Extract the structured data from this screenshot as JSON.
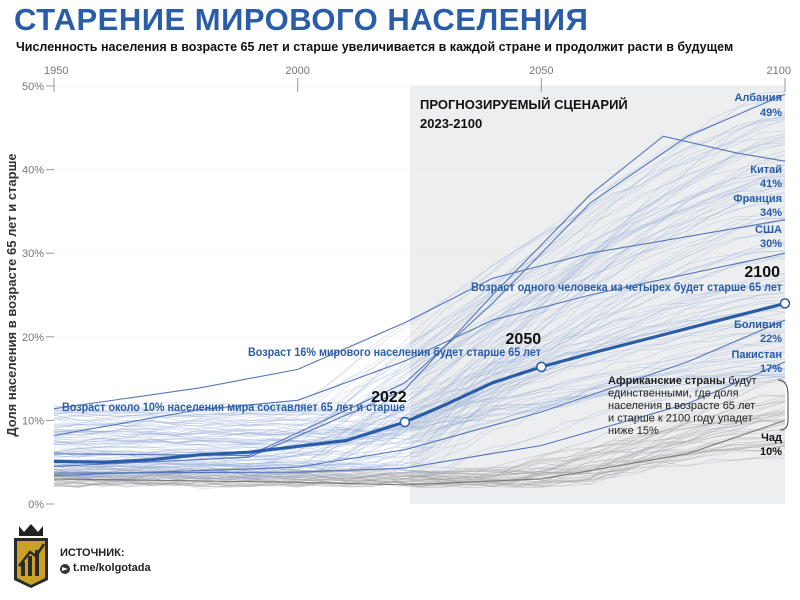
{
  "title": "СТАРЕНИЕ МИРОВОГО НАСЕЛЕНИЯ",
  "subtitle": "Численность населения в возрасте 65 лет и старше увеличивается в каждой стране и продолжит расти в будущем",
  "source": {
    "label": "ИСТОЧНИК:",
    "handle": "t.me/kolgotada"
  },
  "colors": {
    "accent": "#2a5da8",
    "country_line": "#8fa7d4",
    "africa_line": "#9a9a9a",
    "forecast_bg": "#eceeef"
  },
  "chart_data": {
    "type": "line",
    "title": "СТАРЕНИЕ МИРОВОГО НАСЕЛЕНИЯ",
    "subtitle": "Численность населения в возрасте 65 лет и старше увеличивается в каждой стране и продолжит расти в будущем",
    "ylabel": "Доля населения в возрасте 65 лет и старше",
    "xlabel": "",
    "x_ticks": [
      "1950",
      "2000",
      "2050",
      "2100"
    ],
    "y_ticks": [
      "0%",
      "10%",
      "20%",
      "30%",
      "40%",
      "50%"
    ],
    "xlim": [
      1950,
      2100
    ],
    "ylim": [
      0,
      50
    ],
    "forecast": {
      "label": "ПРОГНОЗИРУЕМЫЙ СЦЕНАРИЙ",
      "range_label": "2023-2100",
      "start": 2023,
      "end": 2100
    },
    "world": {
      "points": [
        [
          1950,
          5.1
        ],
        [
          1960,
          5.0
        ],
        [
          1970,
          5.3
        ],
        [
          1980,
          5.9
        ],
        [
          1990,
          6.2
        ],
        [
          2000,
          6.9
        ],
        [
          2010,
          7.6
        ],
        [
          2022,
          9.8
        ],
        [
          2030,
          11.8
        ],
        [
          2040,
          14.5
        ],
        [
          2050,
          16.4
        ],
        [
          2060,
          18.0
        ],
        [
          2070,
          19.5
        ],
        [
          2080,
          21.0
        ],
        [
          2090,
          22.5
        ],
        [
          2100,
          24.0
        ]
      ],
      "markers": [
        {
          "year": 2022,
          "value": 9.8,
          "year_label": "2022",
          "note": "Возраст около 10% населения мира составляет 65 лет и старше"
        },
        {
          "year": 2050,
          "value": 16.4,
          "year_label": "2050",
          "note": "Возраст 16% мирового населения будет старше 65 лет"
        },
        {
          "year": 2100,
          "value": 24.0,
          "year_label": "2100",
          "note": "Возраст одного человека из четырех будет старше 65 лет"
        }
      ]
    },
    "highlighted": [
      {
        "name": "Албания",
        "value_label": "49%",
        "points": [
          [
            1950,
            6.0
          ],
          [
            1990,
            5.8
          ],
          [
            2022,
            14.5
          ],
          [
            2040,
            24.0
          ],
          [
            2060,
            36.0
          ],
          [
            2080,
            44.0
          ],
          [
            2100,
            49.0
          ]
        ]
      },
      {
        "name": "Китай",
        "value_label": "41%",
        "points": [
          [
            1950,
            4.5
          ],
          [
            1990,
            5.6
          ],
          [
            2022,
            13.7
          ],
          [
            2040,
            25.0
          ],
          [
            2060,
            37.0
          ],
          [
            2075,
            44.0
          ],
          [
            2090,
            42.0
          ],
          [
            2100,
            41.0
          ]
        ]
      },
      {
        "name": "Франция",
        "value_label": "34%",
        "points": [
          [
            1950,
            11.4
          ],
          [
            1980,
            13.9
          ],
          [
            2000,
            16.1
          ],
          [
            2022,
            21.7
          ],
          [
            2040,
            27.0
          ],
          [
            2060,
            30.0
          ],
          [
            2100,
            34.0
          ]
        ]
      },
      {
        "name": "США",
        "value_label": "30%",
        "points": [
          [
            1950,
            8.2
          ],
          [
            1980,
            11.3
          ],
          [
            2000,
            12.4
          ],
          [
            2022,
            17.1
          ],
          [
            2040,
            22.0
          ],
          [
            2060,
            25.0
          ],
          [
            2100,
            30.0
          ]
        ]
      },
      {
        "name": "Боливия",
        "value_label": "22%",
        "points": [
          [
            1950,
            3.4
          ],
          [
            2000,
            4.4
          ],
          [
            2022,
            6.5
          ],
          [
            2050,
            11.0
          ],
          [
            2080,
            17.0
          ],
          [
            2100,
            22.0
          ]
        ]
      },
      {
        "name": "Пакистан",
        "value_label": "17%",
        "points": [
          [
            1950,
            3.7
          ],
          [
            2000,
            3.8
          ],
          [
            2022,
            4.3
          ],
          [
            2050,
            7.0
          ],
          [
            2080,
            12.0
          ],
          [
            2100,
            17.0
          ]
        ]
      },
      {
        "name": "Чад",
        "value_label": "10%",
        "points": [
          [
            1950,
            3.0
          ],
          [
            2000,
            2.6
          ],
          [
            2022,
            2.3
          ],
          [
            2050,
            3.0
          ],
          [
            2080,
            6.0
          ],
          [
            2100,
            10.0
          ]
        ]
      }
    ],
    "annotations": [
      {
        "bold": "Африканские страны",
        "text": " будут единственными, где доля населения в возрасте 65 лет и старше к 2100 году упадет ниже 15%"
      }
    ]
  }
}
